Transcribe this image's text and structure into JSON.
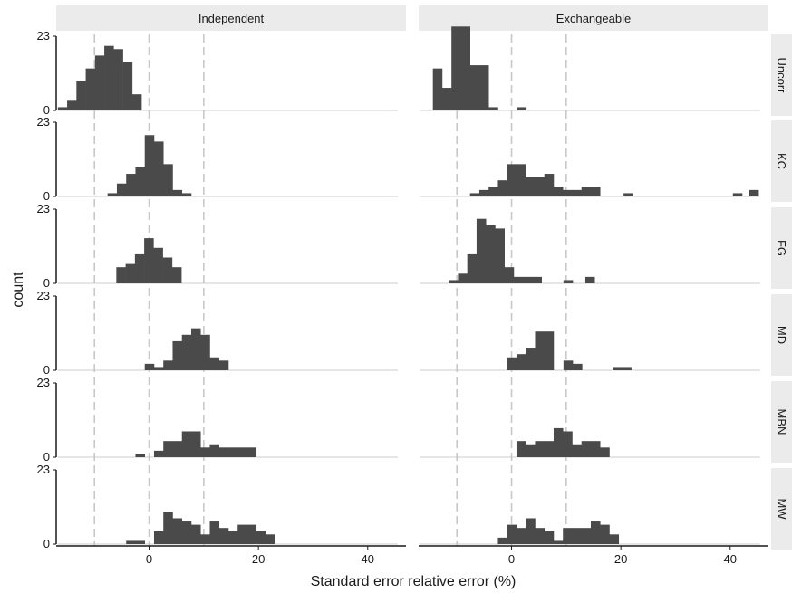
{
  "chart_data": {
    "type": "histogram",
    "title": "",
    "xlabel": "Standard error relative error (%)",
    "ylabel": "count",
    "columns": [
      "Independent",
      "Exchangeable"
    ],
    "rows": [
      "Uncorr",
      "KC",
      "FG",
      "MD",
      "MBN",
      "MW"
    ],
    "xlim": [
      -17,
      47
    ],
    "ylim": [
      0,
      23
    ],
    "x_ticks": [
      0,
      20,
      40
    ],
    "y_ticks": [
      0,
      23
    ],
    "reference_lines": [
      -10,
      0,
      10
    ],
    "bin_width": 1.7,
    "grid": false,
    "panels": [
      {
        "row": "Uncorr",
        "column": "Independent",
        "bins": [
          [
            -16.7,
            1
          ],
          [
            -15.0,
            3
          ],
          [
            -13.3,
            9
          ],
          [
            -11.6,
            13
          ],
          [
            -9.9,
            17
          ],
          [
            -8.2,
            20
          ],
          [
            -6.5,
            19
          ],
          [
            -4.8,
            15
          ],
          [
            -3.1,
            5
          ]
        ]
      },
      {
        "row": "Uncorr",
        "column": "Exchangeable",
        "bins": [
          [
            -14.4,
            13
          ],
          [
            -12.7,
            7
          ],
          [
            -11.0,
            26
          ],
          [
            -9.3,
            26
          ],
          [
            -7.6,
            14
          ],
          [
            -5.9,
            14
          ],
          [
            -4.2,
            1
          ],
          [
            1.0,
            1
          ]
        ]
      },
      {
        "row": "KC",
        "column": "Independent",
        "bins": [
          [
            -7.6,
            1
          ],
          [
            -5.9,
            4
          ],
          [
            -4.2,
            7
          ],
          [
            -2.5,
            9
          ],
          [
            -0.8,
            19
          ],
          [
            0.9,
            17
          ],
          [
            2.6,
            10
          ],
          [
            4.3,
            2
          ],
          [
            6.0,
            1
          ]
        ]
      },
      {
        "row": "KC",
        "column": "Exchangeable",
        "bins": [
          [
            -7.6,
            1
          ],
          [
            -5.9,
            2
          ],
          [
            -4.2,
            3
          ],
          [
            -2.5,
            5
          ],
          [
            -0.8,
            10
          ],
          [
            0.9,
            10
          ],
          [
            2.6,
            6
          ],
          [
            4.3,
            6
          ],
          [
            6.0,
            7
          ],
          [
            7.7,
            3
          ],
          [
            9.4,
            2
          ],
          [
            11.1,
            2
          ],
          [
            12.8,
            3
          ],
          [
            14.5,
            3
          ],
          [
            20.5,
            1
          ],
          [
            40.5,
            1
          ],
          [
            43.5,
            2
          ]
        ]
      },
      {
        "row": "FG",
        "column": "Independent",
        "bins": [
          [
            -6.0,
            5
          ],
          [
            -4.3,
            6
          ],
          [
            -2.6,
            9
          ],
          [
            -0.9,
            14
          ],
          [
            0.8,
            11
          ],
          [
            2.5,
            8
          ],
          [
            4.2,
            5
          ]
        ]
      },
      {
        "row": "FG",
        "column": "Exchangeable",
        "bins": [
          [
            -11.5,
            1
          ],
          [
            -9.8,
            3
          ],
          [
            -8.1,
            9
          ],
          [
            -6.4,
            20
          ],
          [
            -4.7,
            18
          ],
          [
            -3.0,
            17
          ],
          [
            -1.3,
            5
          ],
          [
            0.4,
            2
          ],
          [
            2.1,
            2
          ],
          [
            3.8,
            2
          ],
          [
            9.5,
            1
          ],
          [
            13.5,
            2
          ]
        ]
      },
      {
        "row": "MD",
        "column": "Independent",
        "bins": [
          [
            -0.8,
            2
          ],
          [
            0.9,
            1
          ],
          [
            2.6,
            3
          ],
          [
            4.3,
            9
          ],
          [
            6.0,
            11
          ],
          [
            7.7,
            13
          ],
          [
            9.4,
            11
          ],
          [
            11.1,
            4
          ],
          [
            12.8,
            3
          ]
        ]
      },
      {
        "row": "MD",
        "column": "Exchangeable",
        "bins": [
          [
            -0.8,
            4
          ],
          [
            0.9,
            5
          ],
          [
            2.6,
            7
          ],
          [
            4.3,
            12
          ],
          [
            6.0,
            12
          ],
          [
            9.5,
            3
          ],
          [
            11.2,
            2
          ],
          [
            18.5,
            1
          ],
          [
            20.2,
            1
          ]
        ]
      },
      {
        "row": "MBN",
        "column": "Independent",
        "bins": [
          [
            -2.5,
            1
          ],
          [
            0.9,
            2
          ],
          [
            2.6,
            5
          ],
          [
            4.3,
            5
          ],
          [
            6.0,
            8
          ],
          [
            7.7,
            8
          ],
          [
            9.4,
            3
          ],
          [
            11.1,
            4
          ],
          [
            12.8,
            3
          ],
          [
            14.5,
            3
          ],
          [
            16.2,
            3
          ],
          [
            17.9,
            3
          ]
        ]
      },
      {
        "row": "MBN",
        "column": "Exchangeable",
        "bins": [
          [
            0.9,
            5
          ],
          [
            2.6,
            4
          ],
          [
            4.3,
            5
          ],
          [
            6.0,
            5
          ],
          [
            7.7,
            9
          ],
          [
            9.4,
            8
          ],
          [
            11.1,
            4
          ],
          [
            12.8,
            5
          ],
          [
            14.5,
            5
          ],
          [
            16.2,
            3
          ]
        ]
      },
      {
        "row": "MW",
        "column": "Independent",
        "bins": [
          [
            -4.2,
            1
          ],
          [
            -2.5,
            1
          ],
          [
            0.9,
            4
          ],
          [
            2.6,
            10
          ],
          [
            4.3,
            8
          ],
          [
            6.0,
            7
          ],
          [
            7.7,
            6
          ],
          [
            9.4,
            3
          ],
          [
            11.1,
            7
          ],
          [
            12.8,
            5
          ],
          [
            14.5,
            4
          ],
          [
            16.2,
            6
          ],
          [
            17.9,
            6
          ],
          [
            19.6,
            4
          ],
          [
            21.3,
            3
          ]
        ]
      },
      {
        "row": "MW",
        "column": "Exchangeable",
        "bins": [
          [
            -2.5,
            2
          ],
          [
            -0.8,
            6
          ],
          [
            0.9,
            5
          ],
          [
            2.6,
            8
          ],
          [
            4.3,
            5
          ],
          [
            6.0,
            4
          ],
          [
            7.7,
            1
          ],
          [
            9.4,
            5
          ],
          [
            11.1,
            5
          ],
          [
            12.8,
            5
          ],
          [
            14.5,
            7
          ],
          [
            16.2,
            6
          ],
          [
            17.9,
            3
          ]
        ]
      }
    ]
  }
}
